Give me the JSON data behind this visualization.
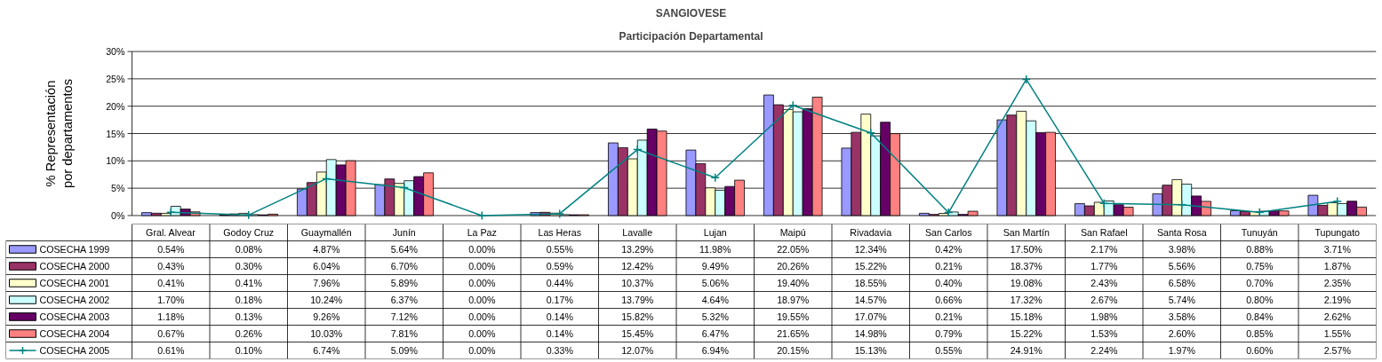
{
  "chart_data": {
    "type": "bar",
    "title": "SANGIOVESE",
    "subtitle": "Participación Departamental",
    "ylabel": "% Representación por departamentos",
    "categories": [
      "Gral. Alvear",
      "Godoy Cruz",
      "Guaymallén",
      "Junín",
      "La Paz",
      "Las Heras",
      "Lavalle",
      "Lujan",
      "Maipú",
      "Rivadavia",
      "San Carlos",
      "San Martín",
      "San Rafael",
      "Santa Rosa",
      "Tunuyán",
      "Tupungato"
    ],
    "ylim": [
      0,
      30
    ],
    "yticks": [
      {
        "value": 0,
        "label": "0%"
      },
      {
        "value": 5,
        "label": "5%"
      },
      {
        "value": 10,
        "label": "10%"
      },
      {
        "value": 15,
        "label": "15%"
      },
      {
        "value": 20,
        "label": "20%"
      },
      {
        "value": 25,
        "label": "25%"
      },
      {
        "value": 30,
        "label": "30%"
      }
    ],
    "grid": "y",
    "legend": "bottom",
    "series": [
      {
        "name": "COSECHA 1999",
        "color": "#9999ff",
        "values": [
          0.54,
          0.08,
          4.87,
          5.64,
          0.0,
          0.55,
          13.29,
          11.98,
          22.05,
          12.34,
          0.42,
          17.5,
          2.17,
          3.98,
          0.88,
          3.71
        ],
        "value_labels": [
          "0.54%",
          "0.08%",
          "4.87%",
          "5.64%",
          "0.00%",
          "0.55%",
          "13.29%",
          "11.98%",
          "22.05%",
          "12.34%",
          "0.42%",
          "17.50%",
          "2.17%",
          "3.98%",
          "0.88%",
          "3.71%"
        ]
      },
      {
        "name": "COSECHA 2000",
        "color": "#993366",
        "values": [
          0.43,
          0.3,
          6.04,
          6.7,
          0.0,
          0.59,
          12.42,
          9.49,
          20.26,
          15.22,
          0.21,
          18.37,
          1.77,
          5.56,
          0.75,
          1.87
        ],
        "value_labels": [
          "0.43%",
          "0.30%",
          "6.04%",
          "6.70%",
          "0.00%",
          "0.59%",
          "12.42%",
          "9.49%",
          "20.26%",
          "15.22%",
          "0.21%",
          "18.37%",
          "1.77%",
          "5.56%",
          "0.75%",
          "1.87%"
        ]
      },
      {
        "name": "COSECHA 2001",
        "color": "#ffffcc",
        "values": [
          0.41,
          0.41,
          7.96,
          5.89,
          0.0,
          0.44,
          10.37,
          5.06,
          19.4,
          18.55,
          0.4,
          19.08,
          2.43,
          6.58,
          0.7,
          2.35
        ],
        "value_labels": [
          "0.41%",
          "0.41%",
          "7.96%",
          "5.89%",
          "0.00%",
          "0.44%",
          "10.37%",
          "5.06%",
          "19.40%",
          "18.55%",
          "0.40%",
          "19.08%",
          "2.43%",
          "6.58%",
          "0.70%",
          "2.35%"
        ]
      },
      {
        "name": "COSECHA 2002",
        "color": "#ccffff",
        "values": [
          1.7,
          0.18,
          10.24,
          6.37,
          0.0,
          0.17,
          13.79,
          4.64,
          18.97,
          14.57,
          0.66,
          17.32,
          2.67,
          5.74,
          0.8,
          2.19
        ],
        "value_labels": [
          "1.70%",
          "0.18%",
          "10.24%",
          "6.37%",
          "0.00%",
          "0.17%",
          "13.79%",
          "4.64%",
          "18.97%",
          "14.57%",
          "0.66%",
          "17.32%",
          "2.67%",
          "5.74%",
          "0.80%",
          "2.19%"
        ]
      },
      {
        "name": "COSECHA 2003",
        "color": "#660066",
        "values": [
          1.18,
          0.13,
          9.26,
          7.12,
          0.0,
          0.14,
          15.82,
          5.32,
          19.55,
          17.07,
          0.21,
          15.18,
          1.98,
          3.58,
          0.84,
          2.62
        ],
        "value_labels": [
          "1.18%",
          "0.13%",
          "9.26%",
          "7.12%",
          "0.00%",
          "0.14%",
          "15.82%",
          "5.32%",
          "19.55%",
          "17.07%",
          "0.21%",
          "15.18%",
          "1.98%",
          "3.58%",
          "0.84%",
          "2.62%"
        ]
      },
      {
        "name": "COSECHA 2004",
        "color": "#ff8080",
        "values": [
          0.67,
          0.26,
          10.03,
          7.81,
          0.0,
          0.14,
          15.45,
          6.47,
          21.65,
          14.98,
          0.79,
          15.22,
          1.53,
          2.6,
          0.85,
          1.55
        ],
        "value_labels": [
          "0.67%",
          "0.26%",
          "10.03%",
          "7.81%",
          "0.00%",
          "0.14%",
          "15.45%",
          "6.47%",
          "21.65%",
          "14.98%",
          "0.79%",
          "15.22%",
          "1.53%",
          "2.60%",
          "0.85%",
          "1.55%"
        ]
      },
      {
        "name": "COSECHA 2005",
        "type": "line",
        "marker": "cross",
        "color": "#008080",
        "values": [
          0.61,
          0.1,
          6.74,
          5.09,
          0.0,
          0.33,
          12.07,
          6.94,
          20.15,
          15.13,
          0.55,
          24.91,
          2.24,
          1.97,
          0.6,
          2.57
        ],
        "value_labels": [
          "0.61%",
          "0.10%",
          "6.74%",
          "5.09%",
          "0.00%",
          "0.33%",
          "12.07%",
          "6.94%",
          "20.15%",
          "15.13%",
          "0.55%",
          "24.91%",
          "2.24%",
          "1.97%",
          "0.60%",
          "2.57%"
        ]
      }
    ]
  }
}
